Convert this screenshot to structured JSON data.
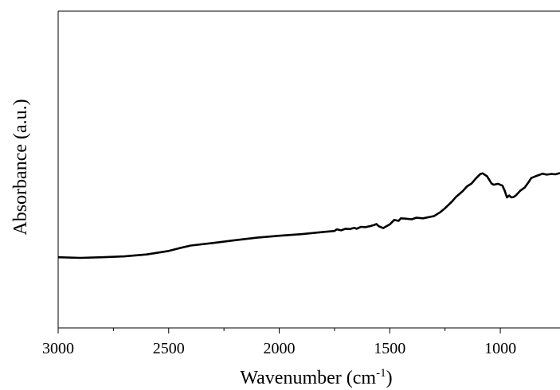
{
  "chart_data": {
    "type": "line",
    "title": "",
    "xlabel": "Wavenumber (cm",
    "xlabel_sup": "-1",
    "xlabel_close": ")",
    "ylabel": "Absorbance (a.u.)",
    "xlim": [
      3000,
      730
    ],
    "ylim": [
      0,
      1
    ],
    "x_reversed": true,
    "grid": false,
    "legend": "none",
    "line_color": "#000000",
    "xticks": [
      3000,
      2500,
      2000,
      1500,
      1000
    ],
    "xtick_labels": [
      "3000",
      "2500",
      "2000",
      "1500",
      "1000"
    ],
    "series": [
      {
        "x": [
          3000,
          2900,
          2800,
          2700,
          2600,
          2500,
          2450,
          2400,
          2300,
          2200,
          2100,
          2000,
          1900,
          1800,
          1750,
          1740,
          1720,
          1700,
          1680,
          1660,
          1650,
          1630,
          1610,
          1590,
          1570,
          1560,
          1550,
          1530,
          1500,
          1480,
          1460,
          1450,
          1430,
          1400,
          1380,
          1350,
          1300,
          1270,
          1250,
          1220,
          1200,
          1170,
          1150,
          1130,
          1110,
          1090,
          1080,
          1060,
          1040,
          1030,
          1010,
          990,
          980,
          970,
          960,
          950,
          940,
          930,
          910,
          890,
          870,
          860,
          840,
          820,
          810,
          790,
          770,
          750,
          730
        ],
        "y": [
          0.223,
          0.221,
          0.223,
          0.226,
          0.232,
          0.243,
          0.252,
          0.26,
          0.268,
          0.277,
          0.285,
          0.291,
          0.296,
          0.303,
          0.306,
          0.311,
          0.308,
          0.313,
          0.312,
          0.316,
          0.313,
          0.319,
          0.318,
          0.321,
          0.325,
          0.328,
          0.321,
          0.315,
          0.327,
          0.341,
          0.338,
          0.346,
          0.345,
          0.343,
          0.348,
          0.346,
          0.353,
          0.366,
          0.378,
          0.398,
          0.414,
          0.432,
          0.447,
          0.456,
          0.472,
          0.486,
          0.488,
          0.479,
          0.456,
          0.452,
          0.455,
          0.449,
          0.433,
          0.412,
          0.418,
          0.412,
          0.413,
          0.418,
          0.433,
          0.443,
          0.462,
          0.473,
          0.479,
          0.484,
          0.487,
          0.484,
          0.486,
          0.485,
          0.489
        ]
      }
    ]
  }
}
